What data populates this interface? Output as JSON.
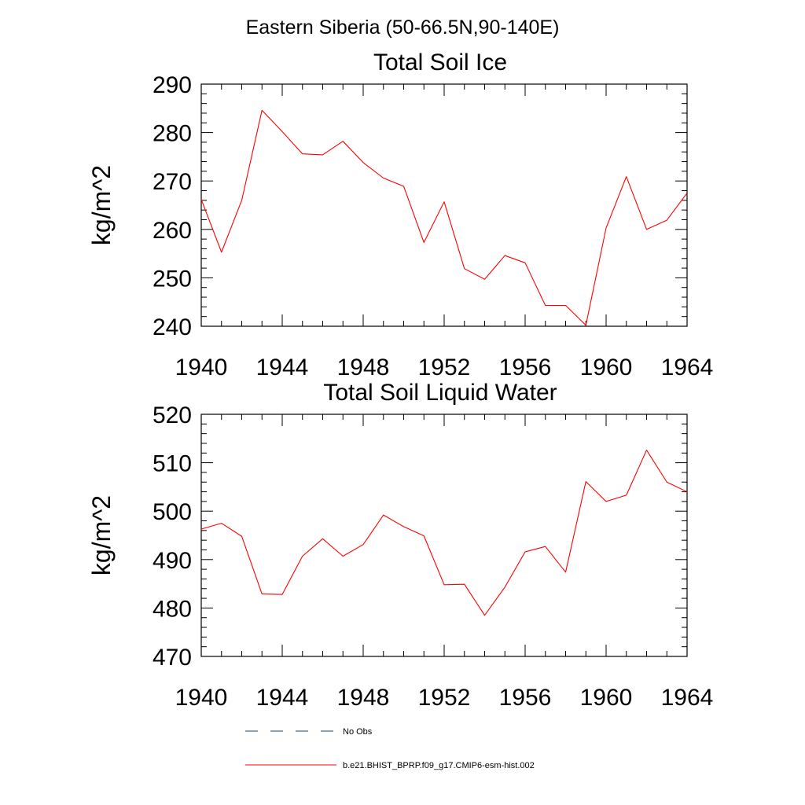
{
  "figure": {
    "suptitle": "Eastern Siberia (50-66.5N,90-140E)"
  },
  "legend": {
    "entries": [
      {
        "label": "No Obs",
        "color": "#223a8a",
        "style": "dashed"
      },
      {
        "label": "b.e21.BHIST_BPRP.f09_g17.CMIP6-esm-hist.002",
        "color": "#ff0000",
        "style": "solid"
      }
    ]
  },
  "chart_data": [
    {
      "type": "line",
      "title": "Total Soil Ice",
      "ylabel": "kg/m^2",
      "xlabel": "",
      "xlim": [
        1940,
        1964
      ],
      "ylim": [
        240,
        290
      ],
      "xticks": [
        "1940",
        "1944",
        "1948",
        "1952",
        "1956",
        "1960",
        "1964"
      ],
      "yticks": [
        "240",
        "250",
        "260",
        "270",
        "280",
        "290"
      ],
      "x": [
        1940,
        1941,
        1942,
        1943,
        1944,
        1945,
        1946,
        1947,
        1948,
        1949,
        1950,
        1951,
        1952,
        1953,
        1954,
        1955,
        1956,
        1957,
        1958,
        1959,
        1960,
        1961,
        1962,
        1963,
        1964
      ],
      "series": [
        {
          "name": "b.e21.BHIST_BPRP.f09_g17.CMIP6-esm-hist.002",
          "color": "#ff0000",
          "values": [
            266.2,
            255.3,
            266.0,
            284.6,
            280.2,
            275.6,
            275.4,
            278.2,
            273.8,
            270.6,
            268.9,
            257.3,
            265.7,
            251.9,
            249.7,
            254.6,
            253.1,
            244.3,
            244.3,
            240.2,
            260.3,
            270.9,
            260.0,
            261.9,
            267.5
          ]
        }
      ]
    },
    {
      "type": "line",
      "title": "Total Soil Liquid Water",
      "ylabel": "kg/m^2",
      "xlabel": "",
      "xlim": [
        1940,
        1964
      ],
      "ylim": [
        470,
        520
      ],
      "xticks": [
        "1940",
        "1944",
        "1948",
        "1952",
        "1956",
        "1960",
        "1964"
      ],
      "yticks": [
        "470",
        "480",
        "490",
        "500",
        "510",
        "520"
      ],
      "x": [
        1940,
        1941,
        1942,
        1943,
        1944,
        1945,
        1946,
        1947,
        1948,
        1949,
        1950,
        1951,
        1952,
        1953,
        1954,
        1955,
        1956,
        1957,
        1958,
        1959,
        1960,
        1961,
        1962,
        1963,
        1964
      ],
      "series": [
        {
          "name": "b.e21.BHIST_BPRP.f09_g17.CMIP6-esm-hist.002",
          "color": "#ff0000",
          "values": [
            496.3,
            497.5,
            494.8,
            482.9,
            482.8,
            490.7,
            494.3,
            490.7,
            493.1,
            499.2,
            496.8,
            494.9,
            484.8,
            484.9,
            478.5,
            484.3,
            491.6,
            492.7,
            487.4,
            506.1,
            502.0,
            503.3,
            512.6,
            506.0,
            504.0
          ]
        }
      ]
    }
  ]
}
